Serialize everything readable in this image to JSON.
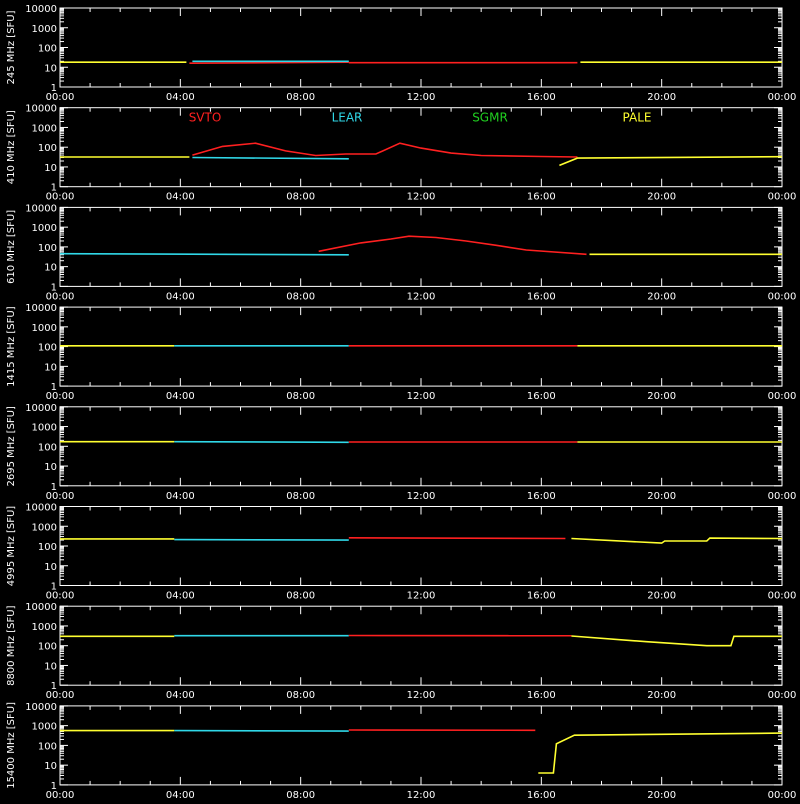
{
  "chart_data": {
    "type": "line",
    "yunit": "[SFU]",
    "y_scale": "log",
    "ylim": [
      1,
      10000
    ],
    "y_ticks": [
      "10000",
      "1000",
      "100",
      "10",
      "1"
    ],
    "x_ticks": [
      "00:00",
      "04:00",
      "08:00",
      "12:00",
      "16:00",
      "20:00",
      "00:00"
    ],
    "x_hours": [
      0,
      4,
      8,
      12,
      16,
      20,
      24
    ],
    "stations": [
      {
        "name": "SVTO",
        "color": "#ff2020"
      },
      {
        "name": "LEAR",
        "color": "#30d8e8"
      },
      {
        "name": "SGMR",
        "color": "#20d020"
      },
      {
        "name": "PALE",
        "color": "#ffff30"
      }
    ],
    "panels": [
      {
        "freq": "245 MHz",
        "series": [
          {
            "station": "PALE",
            "x": [
              0,
              4.2
            ],
            "y": [
              18,
              18
            ]
          },
          {
            "station": "SVTO",
            "x": [
              4.3,
              9.6
            ],
            "y": [
              16,
              18
            ]
          },
          {
            "station": "LEAR",
            "x": [
              4.4,
              9.6
            ],
            "y": [
              20,
              20
            ]
          },
          {
            "station": "SVTO",
            "x": [
              9.6,
              17.2
            ],
            "y": [
              17,
              17
            ]
          },
          {
            "station": "PALE",
            "x": [
              17.3,
              24
            ],
            "y": [
              18,
              18
            ]
          }
        ]
      },
      {
        "freq": "410 MHz",
        "series": [
          {
            "station": "PALE",
            "x": [
              0,
              4.3
            ],
            "y": [
              32,
              32
            ]
          },
          {
            "station": "SVTO",
            "x": [
              4.4,
              5.4,
              6.5,
              7.5,
              8.5,
              9.5,
              10.5,
              11.3,
              12,
              13,
              14,
              16,
              17.2
            ],
            "y": [
              40,
              110,
              160,
              65,
              38,
              45,
              45,
              160,
              90,
              50,
              38,
              34,
              32
            ]
          },
          {
            "station": "LEAR",
            "x": [
              4.4,
              9.6
            ],
            "y": [
              30,
              26
            ]
          },
          {
            "station": "PALE",
            "x": [
              16.6,
              17.2,
              24
            ],
            "y": [
              12,
              28,
              33
            ]
          }
        ]
      },
      {
        "freq": "610 MHz",
        "series": [
          {
            "station": "LEAR",
            "x": [
              0,
              9.6
            ],
            "y": [
              45,
              40
            ]
          },
          {
            "station": "SVTO",
            "x": [
              8.6,
              10,
              11,
              11.6,
              12.5,
              13.5,
              14.5,
              15.5,
              17.5
            ],
            "y": [
              60,
              160,
              250,
              350,
              300,
              200,
              120,
              70,
              42
            ]
          },
          {
            "station": "PALE",
            "x": [
              17.6,
              24
            ],
            "y": [
              42,
              42
            ]
          }
        ]
      },
      {
        "freq": "1415 MHz",
        "series": [
          {
            "station": "PALE",
            "x": [
              0,
              3.8
            ],
            "y": [
              110,
              110
            ]
          },
          {
            "station": "LEAR",
            "x": [
              3.8,
              9.6
            ],
            "y": [
              110,
              110
            ]
          },
          {
            "station": "SVTO",
            "x": [
              9.6,
              17.2
            ],
            "y": [
              110,
              110
            ]
          },
          {
            "station": "PALE",
            "x": [
              17.2,
              24
            ],
            "y": [
              110,
              110
            ]
          }
        ]
      },
      {
        "freq": "2695 MHz",
        "series": [
          {
            "station": "PALE",
            "x": [
              0,
              3.8
            ],
            "y": [
              170,
              170
            ]
          },
          {
            "station": "LEAR",
            "x": [
              3.8,
              9.6
            ],
            "y": [
              170,
              160
            ]
          },
          {
            "station": "SVTO",
            "x": [
              9.6,
              17.2
            ],
            "y": [
              165,
              165
            ]
          },
          {
            "station": "PALE",
            "x": [
              17.2,
              24
            ],
            "y": [
              165,
              165
            ]
          }
        ]
      },
      {
        "freq": "4995 MHz",
        "series": [
          {
            "station": "PALE",
            "x": [
              0,
              3.8
            ],
            "y": [
              230,
              230
            ]
          },
          {
            "station": "LEAR",
            "x": [
              3.8,
              9.6
            ],
            "y": [
              210,
              200
            ]
          },
          {
            "station": "SVTO",
            "x": [
              9.6,
              16.8
            ],
            "y": [
              260,
              240
            ]
          },
          {
            "station": "PALE",
            "x": [
              17,
              20,
              20.1,
              21.5,
              21.6,
              24
            ],
            "y": [
              240,
              140,
              180,
              180,
              250,
              240
            ]
          }
        ]
      },
      {
        "freq": "8800 MHz",
        "series": [
          {
            "station": "PALE",
            "x": [
              0,
              3.8
            ],
            "y": [
              300,
              300
            ]
          },
          {
            "station": "LEAR",
            "x": [
              3.8,
              9.6
            ],
            "y": [
              320,
              320
            ]
          },
          {
            "station": "SVTO",
            "x": [
              9.6,
              17
            ],
            "y": [
              330,
              320
            ]
          },
          {
            "station": "PALE",
            "x": [
              17,
              19.5,
              21.5,
              22.3,
              22.4,
              24
            ],
            "y": [
              310,
              160,
              100,
              100,
              300,
              300
            ]
          }
        ]
      },
      {
        "freq": "15400 MHz",
        "series": [
          {
            "station": "PALE",
            "x": [
              0,
              3.8
            ],
            "y": [
              560,
              560
            ]
          },
          {
            "station": "LEAR",
            "x": [
              3.8,
              9.6
            ],
            "y": [
              560,
              530
            ]
          },
          {
            "station": "SVTO",
            "x": [
              9.6,
              15.8
            ],
            "y": [
              600,
              580
            ]
          },
          {
            "station": "PALE",
            "x": [
              15.9,
              16.4,
              16.5,
              17.1,
              24
            ],
            "y": [
              4,
              4,
              120,
              330,
              420
            ]
          }
        ]
      }
    ]
  }
}
